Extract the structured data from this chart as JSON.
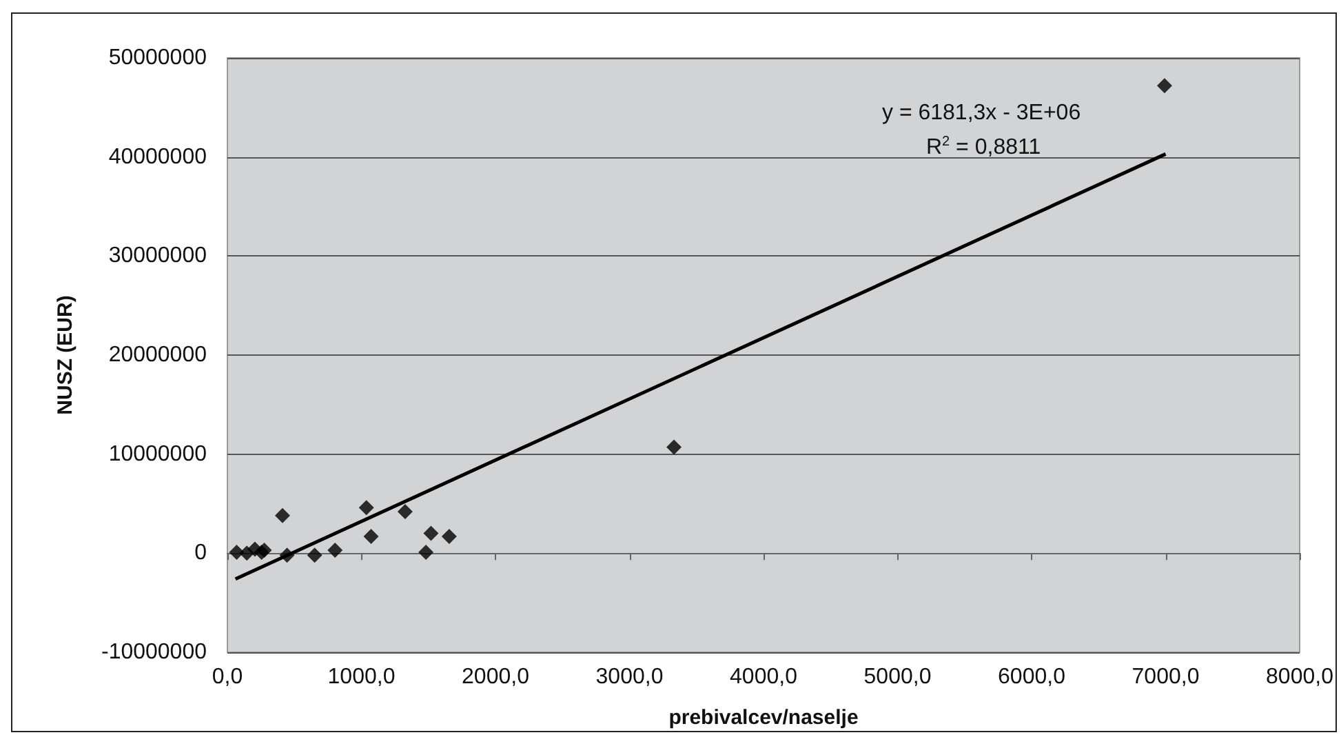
{
  "chart_data": {
    "type": "scatter",
    "xlabel": "prebivalcev/naselje",
    "ylabel": "NUSZ (EUR)",
    "xlim": [
      0,
      8000
    ],
    "xticks": [
      {
        "value": 0,
        "label": "0,0"
      },
      {
        "value": 1000,
        "label": "1000,0"
      },
      {
        "value": 2000,
        "label": "2000,0"
      },
      {
        "value": 3000,
        "label": "3000,0"
      },
      {
        "value": 4000,
        "label": "4000,0"
      },
      {
        "value": 5000,
        "label": "5000,0"
      },
      {
        "value": 6000,
        "label": "6000,0"
      },
      {
        "value": 7000,
        "label": "7000,0"
      },
      {
        "value": 8000,
        "label": "8000,0"
      }
    ],
    "ylim": [
      -10000000,
      50000000
    ],
    "yticks": [
      -10000000,
      0,
      10000000,
      20000000,
      30000000,
      40000000,
      50000000
    ],
    "grid": "y",
    "marker": "diamond",
    "series": [
      {
        "color": "#000000",
        "x": [
          69,
          145,
          205,
          255,
          275,
          411,
          445,
          651,
          803,
          1037,
          1072,
          1326,
          1481,
          1519,
          1655,
          3332,
          6992
        ],
        "values": [
          100000,
          0,
          400000,
          100000,
          300000,
          3800000,
          -200000,
          -200000,
          300000,
          4600000,
          1700000,
          4200000,
          100000,
          2000000,
          1700000,
          10700000,
          47200000
        ]
      },
      {
        "type": "line",
        "color": "#000000",
        "x": [
          60,
          7000
        ],
        "values": [
          -2600000,
          40300000
        ],
        "marker": "none"
      }
    ],
    "annotations": [
      "y = 6181,3x - 3E+06",
      "R$^{2}$ = 0,8811"
    ]
  }
}
